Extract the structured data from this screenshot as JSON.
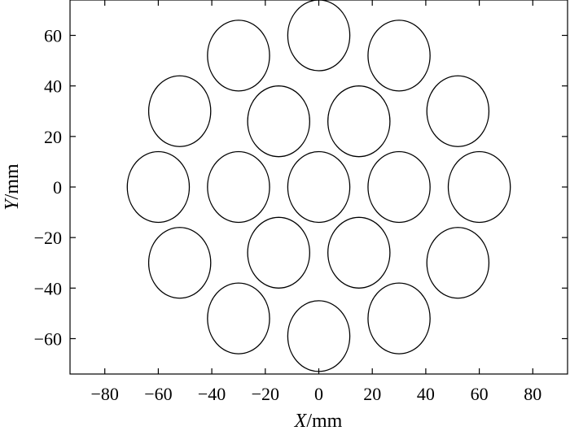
{
  "chart_data": {
    "type": "scatter",
    "marker": "circle-outline",
    "xlabel_var": "X",
    "xlabel_unit": "/mm",
    "ylabel_var": "Y",
    "ylabel_unit": "/mm",
    "xlim": [
      -93,
      93
    ],
    "ylim": [
      -74,
      74
    ],
    "xticks": [
      -80,
      -60,
      -40,
      -20,
      0,
      20,
      40,
      60,
      80
    ],
    "yticks": [
      -60,
      -40,
      -20,
      0,
      20,
      40,
      60
    ],
    "tick_labels_x": [
      "−80",
      "−60",
      "−40",
      "−20",
      "0",
      "20",
      "40",
      "60",
      "80"
    ],
    "tick_labels_y": [
      "−60",
      "−40",
      "−20",
      "0",
      "20",
      "40",
      "60"
    ],
    "grid": false,
    "circle_radius_x": 11.6,
    "circle_radius_y": 14,
    "points": [
      {
        "x": 0,
        "y": 0
      },
      {
        "x": 30,
        "y": 0
      },
      {
        "x": -30,
        "y": 0
      },
      {
        "x": 15,
        "y": 26
      },
      {
        "x": -15,
        "y": 26
      },
      {
        "x": 15,
        "y": -26
      },
      {
        "x": -15,
        "y": -26
      },
      {
        "x": 0,
        "y": 60
      },
      {
        "x": 0,
        "y": -59
      },
      {
        "x": 60,
        "y": 0
      },
      {
        "x": -60,
        "y": 0
      },
      {
        "x": 30,
        "y": 52
      },
      {
        "x": -30,
        "y": 52
      },
      {
        "x": 30,
        "y": -52
      },
      {
        "x": -30,
        "y": -52
      },
      {
        "x": 52,
        "y": 30
      },
      {
        "x": -52,
        "y": 30
      },
      {
        "x": 52,
        "y": -30
      },
      {
        "x": -52,
        "y": -30
      }
    ]
  }
}
